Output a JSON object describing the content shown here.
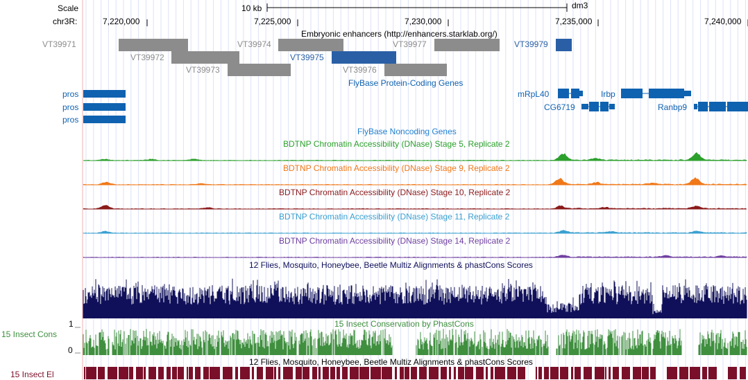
{
  "browser": {
    "scale_label": "Scale",
    "scale_bar_label": "10 kb",
    "assembly": "dm3",
    "chrom_label": "chr3R:",
    "positions": [
      "7,220,000",
      "7,225,000",
      "7,230,000",
      "7,235,000",
      "7,240,000"
    ]
  },
  "tracks": {
    "enhancers": {
      "title": "Embryonic enhancers (http://enhancers.starklab.org/)",
      "items": [
        {
          "label": "VT39971",
          "color": "#8c8c8c"
        },
        {
          "label": "VT39972",
          "color": "#8c8c8c"
        },
        {
          "label": "VT39973",
          "color": "#8c8c8c"
        },
        {
          "label": "VT39974",
          "color": "#8c8c8c"
        },
        {
          "label": "VT39975",
          "color": "#2a5fa5"
        },
        {
          "label": "VT39976",
          "color": "#8c8c8c"
        },
        {
          "label": "VT39977",
          "color": "#8c8c8c"
        },
        {
          "label": "VT39979",
          "color": "#2a5fa5"
        }
      ]
    },
    "protein_coding": {
      "title": "FlyBase Protein-Coding Genes",
      "genes": [
        "pros",
        "pros",
        "pros",
        "mRpL40",
        "Irbp",
        "CG6719",
        "Ranbp9"
      ],
      "color": "#0f62b0"
    },
    "noncoding": {
      "title": "FlyBase Noncoding Genes",
      "color": "#1f7fd0"
    },
    "dnase": [
      {
        "title": "BDTNP Chromatin Accessibility (DNase) Stage 5, Replicate 2",
        "color": "#2ca02c"
      },
      {
        "title": "BDTNP Chromatin Accessibility (DNase) Stage 9, Replicate 2",
        "color": "#f07818"
      },
      {
        "title": "BDTNP Chromatin Accessibility (DNase) Stage 10, Replicate 2",
        "color": "#8b1a1a"
      },
      {
        "title": "BDTNP Chromatin Accessibility (DNase) Stage 11, Replicate 2",
        "color": "#3aa0d0"
      },
      {
        "title": "BDTNP Chromatin Accessibility (DNase) Stage 14, Replicate 2",
        "color": "#7040a0"
      }
    ],
    "multiz": {
      "title": "12 Flies, Mosquito, Honeybee, Beetle Multiz Alignments & phastCons Scores",
      "color": "#10105a"
    },
    "phastcons": {
      "title": "15 Insect Conservation by PhastCons",
      "side_label": "15 Insect Cons",
      "y_max": "1",
      "y_min": "0",
      "color": "#3f8f3f"
    },
    "elements": {
      "title": "12 Flies, Mosquito, Honeybee, Beetle Multiz Alignments & phastCons Scores",
      "side_label": "15 Insect El",
      "color": "#7a0f2a"
    }
  }
}
